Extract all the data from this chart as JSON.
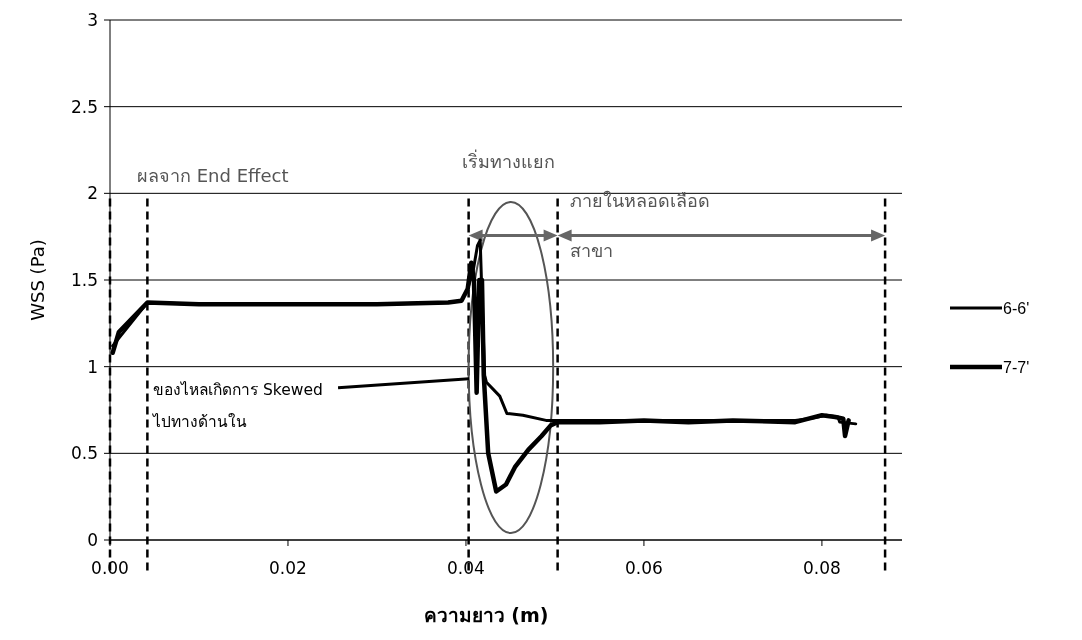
{
  "chart_data": {
    "type": "line",
    "xlabel": "ความยาว (m)",
    "ylabel": "WSS (Pa)",
    "xlim": [
      0,
      0.089
    ],
    "ylim": [
      0,
      3
    ],
    "xticks": [
      {
        "value": 0,
        "label": "0.00"
      },
      {
        "value": 0.02,
        "label": "0.02"
      },
      {
        "value": 0.04,
        "label": "0.04"
      },
      {
        "value": 0.06,
        "label": "0.06"
      },
      {
        "value": 0.08,
        "label": "0.08"
      }
    ],
    "yticks": [
      0,
      0.5,
      1,
      1.5,
      2,
      2.5,
      3
    ],
    "grid": "y",
    "legend": "right",
    "marker": "none",
    "line_style": "solid",
    "series": [
      {
        "name": "6-6'",
        "color": "#000000",
        "x": [
          0.0003,
          0.0042,
          0.01,
          0.02,
          0.03,
          0.038,
          0.0395,
          0.0402,
          0.0408,
          0.0413,
          0.0416,
          0.0418,
          0.0421,
          0.0423,
          0.0438,
          0.0446,
          0.0464,
          0.049,
          0.0503,
          0.055,
          0.06,
          0.065,
          0.07,
          0.077,
          0.0785,
          0.0805,
          0.0818,
          0.082,
          0.0838
        ],
        "values": [
          1.12,
          1.37,
          1.36,
          1.36,
          1.36,
          1.37,
          1.38,
          1.45,
          1.55,
          1.7,
          1.73,
          1.4,
          0.95,
          0.91,
          0.83,
          0.73,
          0.72,
          0.69,
          0.69,
          0.69,
          0.69,
          0.69,
          0.69,
          0.69,
          0.7,
          0.72,
          0.71,
          0.68,
          0.67
        ]
      },
      {
        "name": "7-7'",
        "color": "#000000",
        "x": [
          0.0003,
          0.001,
          0.0042,
          0.01,
          0.02,
          0.03,
          0.038,
          0.0395,
          0.0402,
          0.0406,
          0.0409,
          0.0412,
          0.0415,
          0.0418,
          0.042,
          0.0425,
          0.0434,
          0.0445,
          0.0455,
          0.047,
          0.0485,
          0.0495,
          0.0503,
          0.055,
          0.06,
          0.065,
          0.07,
          0.077,
          0.0785,
          0.08,
          0.0815,
          0.0824,
          0.0826,
          0.083
        ],
        "values": [
          1.08,
          1.2,
          1.37,
          1.36,
          1.36,
          1.36,
          1.37,
          1.38,
          1.45,
          1.6,
          1.5,
          0.85,
          1.5,
          1.5,
          0.95,
          0.5,
          0.28,
          0.32,
          0.42,
          0.52,
          0.6,
          0.66,
          0.68,
          0.68,
          0.69,
          0.68,
          0.69,
          0.68,
          0.7,
          0.72,
          0.71,
          0.7,
          0.6,
          0.69
        ]
      }
    ],
    "ref_lines": [
      {
        "axis": "x",
        "value": 0,
        "color": "#000000",
        "line_style": "dashed"
      },
      {
        "axis": "x",
        "value": 0.0042,
        "color": "#000000",
        "line_style": "dashed"
      },
      {
        "axis": "x",
        "value": 0.0403,
        "color": "#000000",
        "line_style": "dashed"
      },
      {
        "axis": "x",
        "value": 0.0503,
        "color": "#000000",
        "line_style": "dashed"
      },
      {
        "axis": "x",
        "value": 0.0871,
        "color": "#000000",
        "line_style": "dashed"
      }
    ],
    "annotations": [
      "ผลจาก End Effect",
      "เริ่มทางแยก",
      "ภายในหลอดเลือด\nสาขา",
      {
        "text": "ของไหลเกิดการ Skewed\nไปทางด้านใน",
        "x": 0.0408,
        "y": 0.93
      }
    ]
  }
}
